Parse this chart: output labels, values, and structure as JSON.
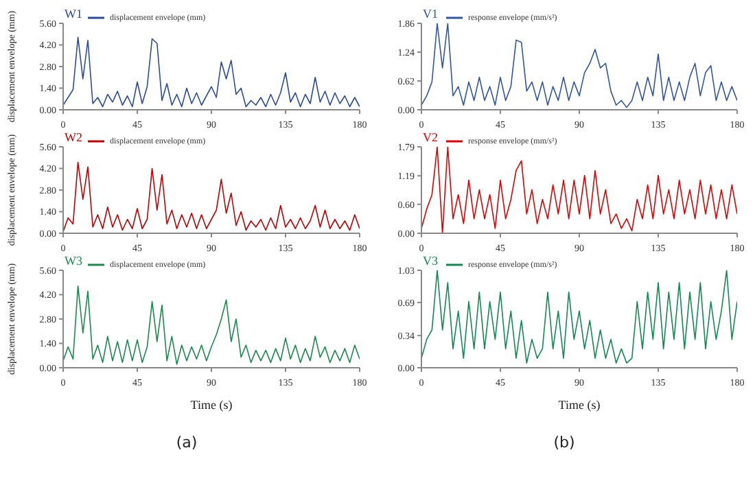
{
  "chart_data": [
    {
      "type": "line",
      "title": "W1",
      "ylabel": "displacement envelope (mm)",
      "legend": "top left",
      "grid": false,
      "xlim": [
        0,
        180
      ],
      "xticks": [
        0,
        45,
        90,
        135,
        180
      ],
      "ylim": [
        0,
        5.6
      ],
      "yticks": [
        {
          "value": 0,
          "label": "0.00"
        },
        {
          "value": 1.4,
          "label": "1.40"
        },
        {
          "value": 2.8,
          "label": "2.80"
        },
        {
          "value": 4.2,
          "label": "4.20"
        },
        {
          "value": 5.6,
          "label": "5.60"
        }
      ],
      "x": [
        0,
        3,
        6,
        9,
        12,
        15,
        18,
        21,
        24,
        27,
        30,
        33,
        36,
        39,
        42,
        45,
        48,
        51,
        54,
        57,
        60,
        63,
        66,
        69,
        72,
        75,
        78,
        81,
        84,
        87,
        90,
        93,
        96,
        99,
        102,
        105,
        108,
        111,
        114,
        117,
        120,
        123,
        126,
        129,
        132,
        135,
        138,
        141,
        144,
        147,
        150,
        153,
        156,
        159,
        162,
        165,
        168,
        171,
        174,
        177,
        180
      ],
      "series": [
        {
          "name": "displacement envelope (mm)",
          "color": "#2a4b9b",
          "values": [
            0.3,
            0.8,
            1.3,
            4.7,
            2.0,
            4.5,
            0.4,
            0.8,
            0.2,
            1.0,
            0.5,
            1.2,
            0.3,
            0.9,
            0.2,
            1.8,
            0.4,
            1.5,
            4.6,
            4.3,
            0.6,
            1.7,
            0.3,
            1.0,
            0.2,
            1.4,
            0.4,
            1.1,
            0.3,
            0.9,
            1.5,
            0.8,
            3.1,
            2.0,
            3.2,
            1.0,
            1.4,
            0.2,
            0.6,
            0.3,
            0.8,
            0.2,
            1.0,
            0.3,
            1.1,
            2.4,
            0.5,
            1.1,
            0.2,
            1.0,
            0.4,
            2.1,
            0.5,
            1.2,
            0.3,
            1.1,
            0.4,
            0.9,
            0.2,
            0.8,
            0.2
          ]
        }
      ]
    },
    {
      "type": "line",
      "title": "V1",
      "legend": "top left",
      "grid": false,
      "xlim": [
        0,
        180
      ],
      "xticks": [
        0,
        45,
        90,
        135,
        180
      ],
      "ylim": [
        0,
        1.86
      ],
      "yticks": [
        {
          "value": 0,
          "label": "0.00"
        },
        {
          "value": 0.62,
          "label": "0.62"
        },
        {
          "value": 1.24,
          "label": "1.24"
        },
        {
          "value": 1.86,
          "label": "1.86"
        }
      ],
      "x": [
        0,
        3,
        6,
        9,
        12,
        15,
        18,
        21,
        24,
        27,
        30,
        33,
        36,
        39,
        42,
        45,
        48,
        51,
        54,
        57,
        60,
        63,
        66,
        69,
        72,
        75,
        78,
        81,
        84,
        87,
        90,
        93,
        96,
        99,
        102,
        105,
        108,
        111,
        114,
        117,
        120,
        123,
        126,
        129,
        132,
        135,
        138,
        141,
        144,
        147,
        150,
        153,
        156,
        159,
        162,
        165,
        168,
        171,
        174,
        177,
        180
      ],
      "series": [
        {
          "name": "response envelope (mm/s²)",
          "color": "#2f55a8",
          "values": [
            0.1,
            0.3,
            0.6,
            1.86,
            0.9,
            1.86,
            0.3,
            0.5,
            0.1,
            0.6,
            0.2,
            0.7,
            0.2,
            0.5,
            0.1,
            0.7,
            0.2,
            0.5,
            1.5,
            1.45,
            0.4,
            0.6,
            0.2,
            0.6,
            0.1,
            0.5,
            0.2,
            0.7,
            0.2,
            0.6,
            0.3,
            0.8,
            1.0,
            1.3,
            0.9,
            1.0,
            0.4,
            0.1,
            0.2,
            0.05,
            0.2,
            0.6,
            0.2,
            0.7,
            0.3,
            1.2,
            0.2,
            0.7,
            0.2,
            0.6,
            0.2,
            0.7,
            1.0,
            0.3,
            0.8,
            0.95,
            0.2,
            0.6,
            0.2,
            0.5,
            0.2
          ]
        }
      ]
    },
    {
      "type": "line",
      "title": "W2",
      "ylabel": "displacement envelope (mm)",
      "legend": "top left",
      "grid": false,
      "xlim": [
        0,
        180
      ],
      "xticks": [
        0,
        45,
        90,
        135,
        180
      ],
      "ylim": [
        0,
        5.6
      ],
      "yticks": [
        {
          "value": 0,
          "label": "0.00"
        },
        {
          "value": 1.4,
          "label": "1.40"
        },
        {
          "value": 2.8,
          "label": "2.80"
        },
        {
          "value": 4.2,
          "label": "4.20"
        },
        {
          "value": 5.6,
          "label": "5.60"
        }
      ],
      "x": [
        0,
        3,
        6,
        9,
        12,
        15,
        18,
        21,
        24,
        27,
        30,
        33,
        36,
        39,
        42,
        45,
        48,
        51,
        54,
        57,
        60,
        63,
        66,
        69,
        72,
        75,
        78,
        81,
        84,
        87,
        90,
        93,
        96,
        99,
        102,
        105,
        108,
        111,
        114,
        117,
        120,
        123,
        126,
        129,
        132,
        135,
        138,
        141,
        144,
        147,
        150,
        153,
        156,
        159,
        162,
        165,
        168,
        171,
        174,
        177,
        180
      ],
      "series": [
        {
          "name": "displacement envelope (mm)",
          "color": "#c00000",
          "values": [
            0.1,
            1.0,
            0.6,
            4.6,
            2.2,
            4.3,
            0.4,
            1.2,
            0.3,
            1.7,
            0.4,
            1.2,
            0.2,
            0.9,
            0.3,
            1.6,
            0.3,
            0.9,
            4.2,
            1.5,
            3.8,
            0.6,
            1.5,
            0.3,
            1.2,
            0.4,
            1.3,
            0.3,
            1.2,
            0.3,
            0.9,
            1.5,
            3.5,
            1.3,
            2.6,
            0.5,
            1.4,
            0.2,
            0.8,
            0.4,
            0.9,
            0.2,
            1.0,
            0.3,
            1.8,
            0.4,
            0.9,
            0.3,
            1.0,
            0.3,
            0.8,
            1.8,
            0.4,
            1.5,
            0.3,
            0.9,
            0.3,
            0.8,
            0.2,
            1.2,
            0.3
          ]
        }
      ]
    },
    {
      "type": "line",
      "title": "V2",
      "legend": "top left",
      "grid": false,
      "xlim": [
        0,
        180
      ],
      "xticks": [
        0,
        45,
        90,
        135,
        180
      ],
      "ylim": [
        0,
        1.79
      ],
      "yticks": [
        {
          "value": 0,
          "label": "0.00"
        },
        {
          "value": 0.6,
          "label": "0.60"
        },
        {
          "value": 1.19,
          "label": "1.19"
        },
        {
          "value": 1.79,
          "label": "1.79"
        }
      ],
      "x": [
        0,
        3,
        6,
        9,
        12,
        15,
        18,
        21,
        24,
        27,
        30,
        33,
        36,
        39,
        42,
        45,
        48,
        51,
        54,
        57,
        60,
        63,
        66,
        69,
        72,
        75,
        78,
        81,
        84,
        87,
        90,
        93,
        96,
        99,
        102,
        105,
        108,
        111,
        114,
        117,
        120,
        123,
        126,
        129,
        132,
        135,
        138,
        141,
        144,
        147,
        150,
        153,
        156,
        159,
        162,
        165,
        168,
        171,
        174,
        177,
        180
      ],
      "series": [
        {
          "name": "response envelope (mm/s²)",
          "color": "#e00000",
          "values": [
            0.1,
            0.5,
            0.8,
            1.79,
            0.0,
            1.79,
            0.3,
            0.8,
            0.2,
            1.1,
            0.3,
            0.9,
            0.3,
            0.8,
            0.1,
            1.1,
            0.3,
            0.7,
            1.3,
            1.5,
            0.4,
            0.9,
            0.2,
            0.7,
            0.3,
            1.0,
            0.4,
            1.1,
            0.3,
            1.1,
            0.4,
            1.2,
            0.3,
            1.3,
            0.4,
            0.9,
            0.2,
            0.4,
            0.1,
            0.3,
            0.05,
            0.7,
            0.3,
            1.0,
            0.3,
            1.2,
            0.4,
            0.9,
            0.3,
            1.1,
            0.4,
            0.9,
            0.3,
            1.1,
            0.4,
            1.0,
            0.3,
            0.9,
            0.3,
            1.0,
            0.4
          ]
        }
      ]
    },
    {
      "type": "line",
      "title": "W3",
      "ylabel": "displacement envelope (mm)",
      "xlabel": "Time (s)",
      "annotations": [
        "(a)"
      ],
      "legend": "top left",
      "grid": false,
      "xlim": [
        0,
        180
      ],
      "xticks": [
        0,
        45,
        90,
        135,
        180
      ],
      "ylim": [
        0,
        5.6
      ],
      "yticks": [
        {
          "value": 0,
          "label": "0.00"
        },
        {
          "value": 1.4,
          "label": "1.40"
        },
        {
          "value": 2.8,
          "label": "2.80"
        },
        {
          "value": 4.2,
          "label": "4.20"
        },
        {
          "value": 5.6,
          "label": "5.60"
        }
      ],
      "x": [
        0,
        3,
        6,
        9,
        12,
        15,
        18,
        21,
        24,
        27,
        30,
        33,
        36,
        39,
        42,
        45,
        48,
        51,
        54,
        57,
        60,
        63,
        66,
        69,
        72,
        75,
        78,
        81,
        84,
        87,
        90,
        93,
        96,
        99,
        102,
        105,
        108,
        111,
        114,
        117,
        120,
        123,
        126,
        129,
        132,
        135,
        138,
        141,
        144,
        147,
        150,
        153,
        156,
        159,
        162,
        165,
        168,
        171,
        174,
        177,
        180
      ],
      "series": [
        {
          "name": "displacement envelope (mm)",
          "color": "#1a8a4a",
          "values": [
            0.4,
            1.2,
            0.5,
            4.7,
            2.0,
            4.4,
            0.5,
            1.3,
            0.3,
            1.8,
            0.4,
            1.5,
            0.3,
            1.6,
            0.4,
            1.6,
            0.3,
            1.2,
            3.8,
            1.5,
            3.6,
            0.4,
            1.8,
            0.2,
            1.3,
            0.4,
            1.2,
            0.5,
            1.3,
            0.4,
            1.2,
            1.9,
            2.8,
            3.9,
            1.5,
            2.8,
            0.6,
            1.3,
            0.3,
            1.0,
            0.4,
            1.0,
            0.3,
            1.1,
            0.4,
            1.7,
            0.5,
            1.3,
            0.3,
            1.1,
            0.4,
            1.8,
            0.6,
            1.2,
            0.3,
            1.0,
            0.4,
            1.1,
            0.3,
            1.3,
            0.5
          ]
        }
      ]
    },
    {
      "type": "line",
      "title": "V3",
      "xlabel": "Time (s)",
      "annotations": [
        "(b)"
      ],
      "legend": "top left",
      "grid": false,
      "xlim": [
        0,
        180
      ],
      "xticks": [
        0,
        45,
        90,
        135,
        180
      ],
      "ylim": [
        0,
        1.03
      ],
      "yticks": [
        {
          "value": 0,
          "label": "0.00"
        },
        {
          "value": 0.34,
          "label": "0.34"
        },
        {
          "value": 0.69,
          "label": "0.69"
        },
        {
          "value": 1.03,
          "label": "1.03"
        }
      ],
      "x": [
        0,
        3,
        6,
        9,
        12,
        15,
        18,
        21,
        24,
        27,
        30,
        33,
        36,
        39,
        42,
        45,
        48,
        51,
        54,
        57,
        60,
        63,
        66,
        69,
        72,
        75,
        78,
        81,
        84,
        87,
        90,
        93,
        96,
        99,
        102,
        105,
        108,
        111,
        114,
        117,
        120,
        123,
        126,
        129,
        132,
        135,
        138,
        141,
        144,
        147,
        150,
        153,
        156,
        159,
        162,
        165,
        168,
        171,
        174,
        177,
        180
      ],
      "series": [
        {
          "name": "response envelope (mm/s²)",
          "color": "#118a50",
          "values": [
            0.1,
            0.3,
            0.4,
            1.03,
            0.4,
            0.9,
            0.2,
            0.6,
            0.1,
            0.7,
            0.2,
            0.8,
            0.2,
            0.7,
            0.3,
            0.8,
            0.2,
            0.6,
            0.1,
            0.5,
            0.05,
            0.3,
            0.1,
            0.2,
            0.8,
            0.2,
            0.6,
            0.1,
            0.8,
            0.3,
            0.6,
            0.2,
            0.5,
            0.1,
            0.4,
            0.1,
            0.3,
            0.05,
            0.2,
            0.05,
            0.1,
            0.7,
            0.2,
            0.8,
            0.3,
            0.9,
            0.2,
            0.8,
            0.3,
            0.9,
            0.2,
            0.8,
            0.3,
            0.9,
            0.2,
            0.7,
            0.3,
            0.6,
            1.03,
            0.3,
            0.7
          ]
        }
      ]
    }
  ]
}
